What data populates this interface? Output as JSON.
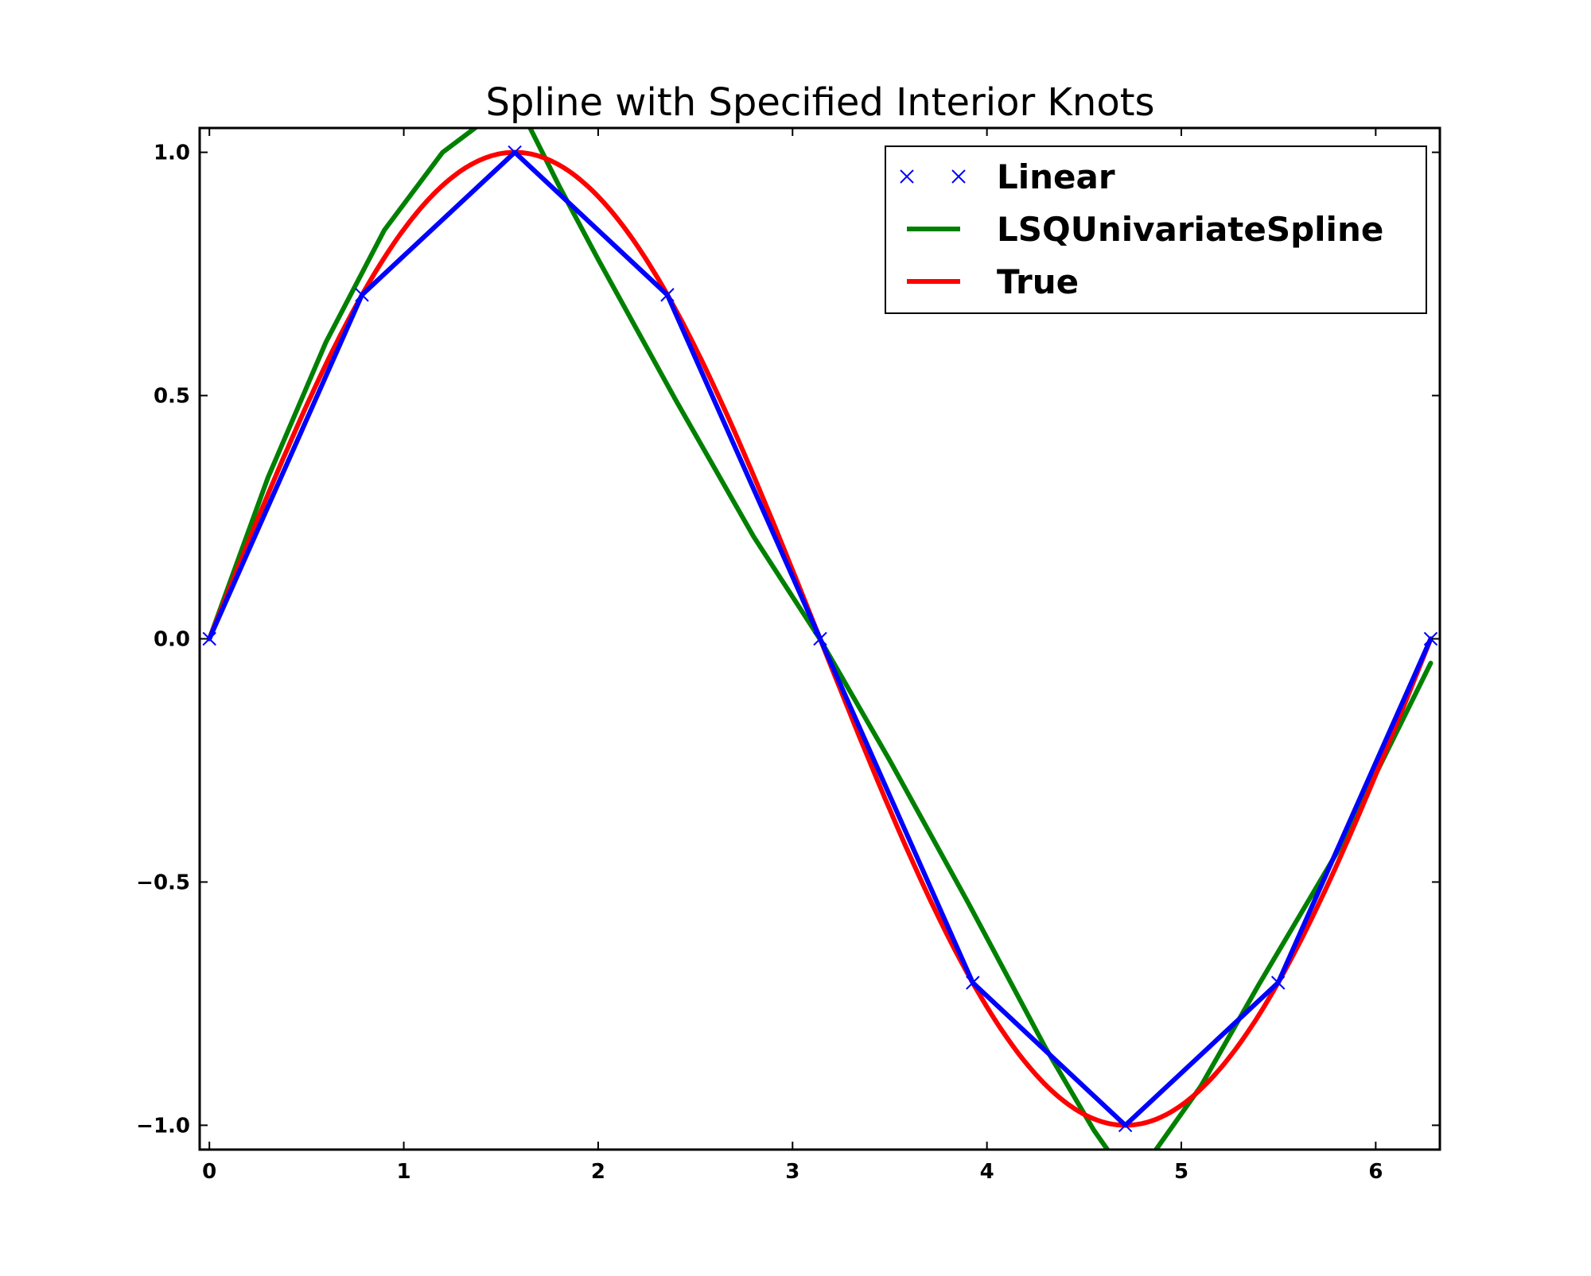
{
  "chart_data": {
    "type": "line",
    "title": "Spline with Specified Interior Knots",
    "xlabel": "",
    "ylabel": "",
    "xlim": [
      -0.05,
      6.33
    ],
    "ylim": [
      -1.05,
      1.05
    ],
    "grid": false,
    "legend_position": "top-right",
    "x_ticks": [
      0,
      1,
      2,
      3,
      4,
      5,
      6
    ],
    "x_tick_labels": [
      "0",
      "1",
      "2",
      "3",
      "4",
      "5",
      "6"
    ],
    "y_ticks": [
      -1.0,
      -0.5,
      0.0,
      0.5,
      1.0
    ],
    "y_tick_labels": [
      "−1.0",
      "−0.5",
      "0.0",
      "0.5",
      "1.0"
    ],
    "series": [
      {
        "name": "Linear",
        "color": "#0000ff",
        "marker": "x",
        "x": [
          0,
          0.785,
          1.571,
          2.356,
          3.142,
          3.927,
          4.712,
          5.498,
          6.283
        ],
        "y": [
          0,
          0.707,
          1.0,
          0.707,
          0,
          -0.707,
          -1.0,
          -0.707,
          0
        ]
      },
      {
        "name": "LSQUnivariateSpline",
        "color": "#008000",
        "x": [
          0,
          0.3,
          0.6,
          0.9,
          1.2,
          1.4,
          1.5,
          1.57,
          1.65,
          1.8,
          2.0,
          2.4,
          2.8,
          3.14,
          3.5,
          3.9,
          4.3,
          4.55,
          4.62,
          4.65,
          4.712,
          4.8,
          4.87,
          5.1,
          5.4,
          5.8,
          6.283
        ],
        "y": [
          0,
          0.33,
          0.61,
          0.84,
          1.0,
          1.06,
          1.08,
          1.08,
          1.05,
          0.93,
          0.78,
          0.49,
          0.21,
          0,
          -0.25,
          -0.54,
          -0.84,
          -1.01,
          -1.05,
          -1.08,
          -1.1,
          -1.08,
          -1.05,
          -0.92,
          -0.71,
          -0.44,
          -0.05
        ]
      },
      {
        "name": "True",
        "color": "#ff0000",
        "function": "sin",
        "x_range": [
          0,
          6.283
        ]
      }
    ]
  }
}
